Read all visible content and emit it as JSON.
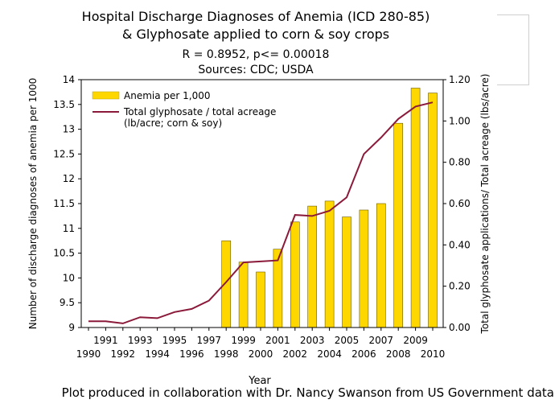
{
  "chart_data": {
    "type": "bar",
    "title": "Hospital Discharge Diagnoses of Anemia (ICD 280-85)",
    "title_line2": "& Glyphosate applied to corn & soy crops",
    "subtitle": "R = 0.8952, p<= 0.00018",
    "sources": "Sources: CDC; USDA",
    "xlabel": "Year",
    "ylabel": "Number of discharge diagnoses of anemia per 1000",
    "y2label": "Total glyphosate applications/ Total acreage (lbs/acre)",
    "ylim": [
      9,
      14
    ],
    "y_ticks": [
      "9",
      "9.5",
      "10",
      "10.5",
      "11",
      "11.5",
      "12",
      "12.5",
      "13",
      "13.5",
      "14"
    ],
    "y2lim": [
      0,
      1.2
    ],
    "y2_ticks": [
      "0.00",
      "0.20",
      "0.40",
      "0.60",
      "0.80",
      "1.00",
      "1.20"
    ],
    "categories": [
      "1990",
      "1991",
      "1992",
      "1993",
      "1994",
      "1995",
      "1996",
      "1997",
      "1998",
      "1999",
      "2000",
      "2001",
      "2002",
      "2003",
      "2004",
      "2005",
      "2006",
      "2007",
      "2008",
      "2009",
      "2010"
    ],
    "legend_position": "top-left",
    "grid": false,
    "series": [
      {
        "name": "Anemia per 1,000",
        "type": "bar",
        "color": "#ffd700",
        "axis": "left",
        "values": [
          null,
          null,
          null,
          null,
          null,
          null,
          null,
          null,
          10.75,
          10.32,
          10.12,
          10.58,
          11.13,
          11.45,
          11.55,
          11.23,
          11.37,
          11.5,
          13.12,
          13.83,
          13.73
        ]
      },
      {
        "name": "Total glyphosate / total acreage",
        "name_line2": "(lb/acre; corn & soy)",
        "type": "line",
        "color": "#8b1a3a",
        "axis": "right",
        "values": [
          0.03,
          0.03,
          0.02,
          0.05,
          0.045,
          0.075,
          0.09,
          0.13,
          0.22,
          0.315,
          0.32,
          0.325,
          0.545,
          0.54,
          0.565,
          0.63,
          0.84,
          0.92,
          1.01,
          1.07,
          1.09
        ]
      }
    ]
  },
  "footer": "Plot produced in collaboration with Dr. Nancy Swanson from US Government data"
}
